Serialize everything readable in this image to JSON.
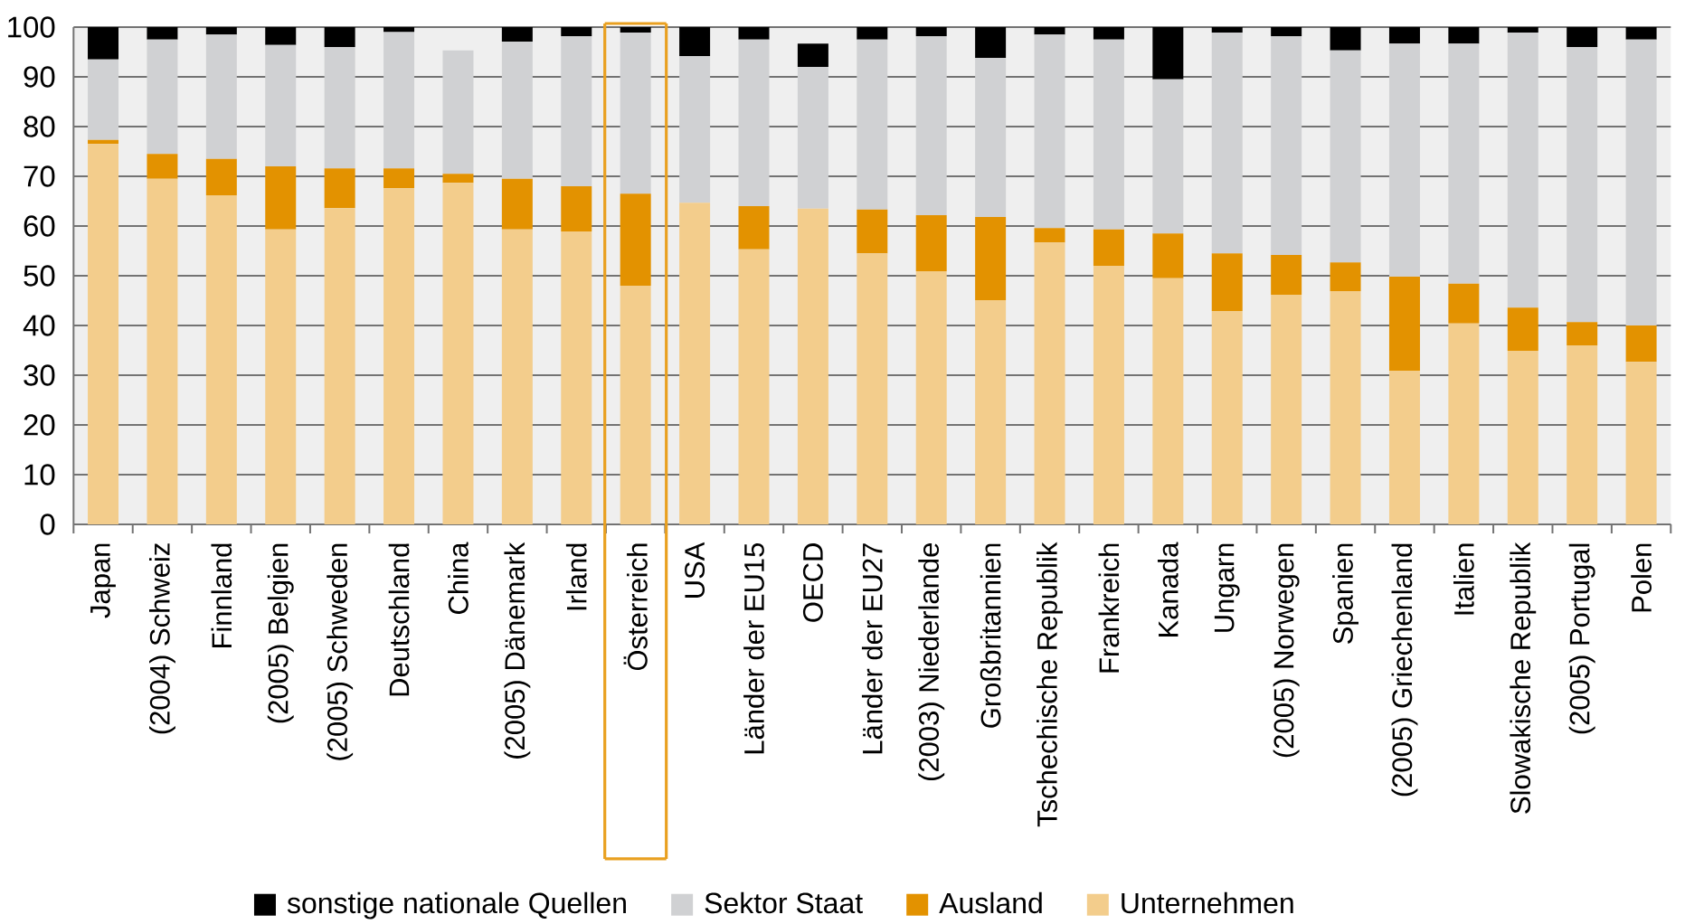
{
  "chart_data": {
    "type": "bar",
    "stacked": true,
    "categories": [
      "Japan",
      "(2004) Schweiz",
      "Finnland",
      "(2005) Belgien",
      "(2005) Schweden",
      "Deutschland",
      "China",
      "(2005) Dänemark",
      "Irland",
      "Österreich",
      "USA",
      "Länder der EU15",
      "OECD",
      "Länder der EU27",
      "(2003) Niederlande",
      "Großbritannien",
      "Tschechische Republik",
      "Frankreich",
      "Kanada",
      "Ungarn",
      "(2005) Norwegen",
      "Spanien",
      "(2005) Griechenland",
      "Italien",
      "Slowakische Republik",
      "(2005) Portugal",
      "Polen"
    ],
    "series": [
      {
        "name": "Unternehmen",
        "color": "#f3cd8c",
        "values": [
          76.5,
          69.5,
          66.2,
          59.3,
          63.6,
          67.6,
          68.7,
          59.3,
          58.9,
          48.0,
          64.7,
          55.3,
          63.5,
          54.5,
          50.9,
          45.1,
          56.7,
          52.0,
          49.5,
          42.9,
          46.2,
          46.9,
          30.9,
          40.4,
          34.9,
          36.0,
          32.7
        ]
      },
      {
        "name": "Ausland",
        "color": "#e39200",
        "values": [
          0.8,
          5.0,
          7.3,
          12.7,
          8.0,
          4.0,
          1.8,
          10.2,
          9.1,
          18.5,
          0,
          8.7,
          0,
          8.8,
          11.3,
          16.7,
          2.9,
          7.3,
          9.0,
          11.6,
          8.0,
          5.8,
          18.9,
          8.0,
          8.7,
          4.7,
          7.3
        ]
      },
      {
        "name": "Sektor Staat",
        "color": "#d0d1d3",
        "values": [
          16.2,
          23.0,
          25.0,
          24.4,
          24.4,
          27.4,
          24.8,
          27.6,
          30.2,
          32.4,
          29.5,
          33.5,
          28.5,
          34.2,
          36.0,
          32.0,
          38.9,
          38.2,
          31.0,
          44.4,
          44.0,
          42.6,
          46.9,
          48.3,
          55.3,
          55.3,
          57.5
        ]
      },
      {
        "name": "sonstige nationale Quellen",
        "color": "#000000",
        "values": [
          6.5,
          2.5,
          1.5,
          3.6,
          4.0,
          1.0,
          0,
          2.9,
          1.8,
          1.1,
          5.8,
          2.5,
          4.7,
          2.5,
          1.8,
          6.2,
          1.5,
          2.5,
          10.5,
          1.1,
          1.8,
          4.7,
          3.3,
          3.3,
          1.1,
          4.0,
          2.5
        ]
      }
    ],
    "ylim": [
      0,
      100
    ],
    "yticks": [
      0,
      10,
      20,
      30,
      40,
      50,
      60,
      70,
      80,
      90,
      100
    ],
    "grid": "y",
    "legend": "bottom"
  }
}
